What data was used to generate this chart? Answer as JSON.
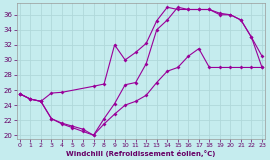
{
  "xlabel": "Windchill (Refroidissement éolien,°C)",
  "bg_color": "#c5ecee",
  "grid_color": "#b0d8da",
  "line_color": "#990099",
  "x_ticks": [
    0,
    1,
    2,
    3,
    4,
    5,
    6,
    7,
    8,
    9,
    10,
    11,
    12,
    13,
    14,
    15,
    16,
    17,
    18,
    19,
    20,
    21,
    22,
    23
  ],
  "y_ticks": [
    20,
    22,
    24,
    26,
    28,
    30,
    32,
    34,
    36
  ],
  "xlim": [
    -0.3,
    23.3
  ],
  "ylim": [
    19.5,
    37.5
  ],
  "line1_x": [
    0,
    1,
    2,
    3,
    4,
    5,
    6,
    7,
    8,
    9,
    10,
    11,
    12,
    13,
    14,
    15,
    16,
    17,
    18,
    19,
    20,
    21,
    22,
    23
  ],
  "line1_y": [
    25.5,
    24.8,
    24.5,
    22.2,
    21.5,
    21.0,
    20.5,
    20.0,
    22.2,
    24.2,
    26.7,
    27.0,
    29.5,
    34.0,
    35.3,
    37.0,
    36.7,
    36.7,
    36.7,
    36.0,
    36.0,
    35.3,
    33.0,
    30.5
  ],
  "line2_x": [
    0,
    1,
    2,
    3,
    4,
    7,
    8,
    9,
    10,
    11,
    12,
    13,
    14,
    15,
    16,
    17,
    18,
    19,
    20,
    21,
    22,
    23
  ],
  "line2_y": [
    25.5,
    24.8,
    24.5,
    25.6,
    25.7,
    26.5,
    26.8,
    32.0,
    30.0,
    31.0,
    32.2,
    35.2,
    37.0,
    36.7,
    36.7,
    36.7,
    36.7,
    36.2,
    36.0,
    35.3,
    33.0,
    29.0
  ],
  "line3_x": [
    0,
    1,
    2,
    3,
    4,
    5,
    6,
    7,
    8,
    9,
    10,
    11,
    12,
    13,
    14,
    15,
    16,
    17,
    18,
    19,
    20,
    21,
    22,
    23
  ],
  "line3_y": [
    25.5,
    24.8,
    24.5,
    22.2,
    21.6,
    21.2,
    20.8,
    20.0,
    21.5,
    22.8,
    24.0,
    24.5,
    25.3,
    27.0,
    28.5,
    29.0,
    30.5,
    31.5,
    29.0,
    29.0,
    29.0,
    29.0,
    29.0,
    29.0
  ]
}
